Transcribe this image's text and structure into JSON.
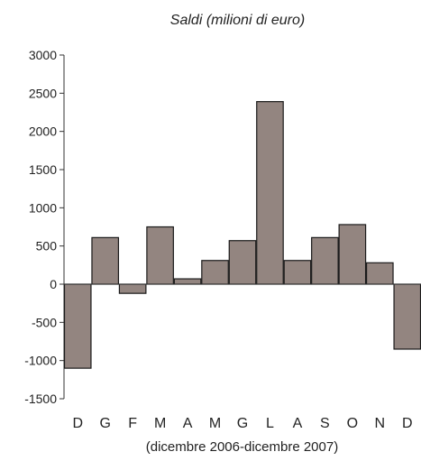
{
  "chart_data": {
    "type": "bar",
    "title": "Saldi (milioni di euro)",
    "xlabel": "(dicembre 2006-dicembre 2007)",
    "ylabel": "",
    "categories": [
      "D",
      "G",
      "F",
      "M",
      "A",
      "M",
      "G",
      "L",
      "A",
      "S",
      "O",
      "N",
      "D"
    ],
    "values": [
      -1100,
      610,
      -120,
      750,
      70,
      310,
      570,
      2390,
      310,
      610,
      780,
      280,
      -850
    ],
    "ylim": [
      -1500,
      3000
    ],
    "yticks": [
      "3000",
      "2500",
      "2000",
      "1500",
      "1000",
      "500",
      "0",
      "-500",
      "-1000",
      "-1500"
    ],
    "grid": false,
    "colors": {
      "bar_fill": "#938580",
      "bar_stroke": "#1a1a1a",
      "axis": "#333333"
    }
  }
}
